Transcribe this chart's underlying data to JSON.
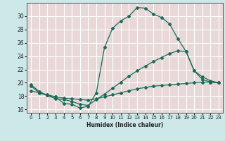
{
  "xlabel": "Humidex (Indice chaleur)",
  "bg_color": "#cce8e8",
  "plot_bg_color": "#e8d8d8",
  "line_color": "#1a6b5a",
  "grid_color": "#ffffff",
  "xlim": [
    -0.5,
    23.5
  ],
  "ylim": [
    15.5,
    32.0
  ],
  "yticks": [
    16,
    18,
    20,
    22,
    24,
    26,
    28,
    30
  ],
  "xticks": [
    0,
    1,
    2,
    3,
    4,
    5,
    6,
    7,
    8,
    9,
    10,
    11,
    12,
    13,
    14,
    15,
    16,
    17,
    18,
    19,
    20,
    21,
    22,
    23
  ],
  "curve1_x": [
    0,
    1,
    2,
    3,
    4,
    5,
    6,
    7,
    8,
    9,
    10,
    11,
    12,
    13,
    14,
    15,
    16,
    17,
    18,
    19,
    20,
    21,
    22,
    23
  ],
  "curve1_y": [
    19.7,
    18.7,
    18.1,
    17.9,
    16.9,
    16.8,
    16.2,
    16.5,
    18.5,
    25.3,
    28.2,
    29.3,
    30.0,
    31.3,
    31.2,
    30.3,
    29.8,
    28.8,
    26.6,
    24.7,
    21.8,
    20.5,
    20.1,
    20.0
  ],
  "curve2_x": [
    0,
    1,
    2,
    3,
    4,
    5,
    6,
    7,
    8,
    9,
    10,
    11,
    12,
    13,
    14,
    15,
    16,
    17,
    18,
    19,
    20,
    21,
    22,
    23
  ],
  "curve2_y": [
    19.5,
    18.5,
    18.1,
    17.6,
    17.5,
    17.2,
    16.8,
    16.6,
    17.5,
    18.3,
    19.2,
    20.1,
    21.0,
    21.8,
    22.5,
    23.2,
    23.8,
    24.4,
    24.8,
    24.7,
    21.8,
    20.9,
    20.3,
    20.0
  ],
  "curve3_x": [
    0,
    1,
    2,
    3,
    4,
    5,
    6,
    7,
    8,
    9,
    10,
    11,
    12,
    13,
    14,
    15,
    16,
    17,
    18,
    19,
    20,
    21,
    22,
    23
  ],
  "curve3_y": [
    18.8,
    18.5,
    18.2,
    17.9,
    17.7,
    17.6,
    17.5,
    17.4,
    17.6,
    17.9,
    18.2,
    18.5,
    18.8,
    19.1,
    19.3,
    19.5,
    19.6,
    19.7,
    19.8,
    19.9,
    20.0,
    20.1,
    20.1,
    20.0
  ]
}
